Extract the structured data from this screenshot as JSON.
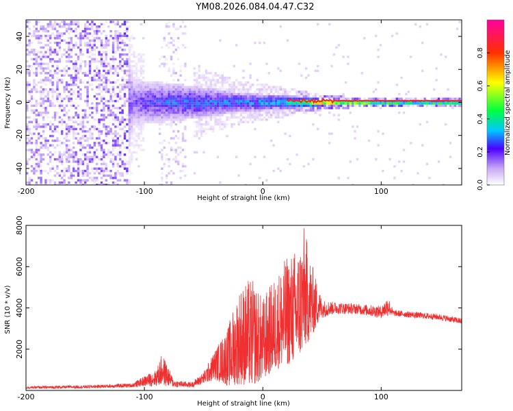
{
  "title": "YM08.2026.084.04.47.C32",
  "chart_data": [
    {
      "type": "heatmap",
      "name": "spectrogram",
      "xlabel": "Height of straight line (km)",
      "ylabel": "Frequency (Hz)",
      "xlim": [
        -200,
        168
      ],
      "ylim": [
        -50,
        50
      ],
      "xticks": [
        -200,
        -100,
        0,
        100
      ],
      "yticks": [
        -40,
        -20,
        0,
        20,
        40
      ],
      "colorbar": {
        "label": "Normalized spectral amplitude",
        "range": [
          0,
          1
        ],
        "ticks": [
          0.0,
          0.2,
          0.4,
          0.6,
          0.8
        ]
      },
      "description_points": [
        {
          "height": -200,
          "freq_spread": 50,
          "peak_amplitude": 0.15
        },
        {
          "height": -120,
          "freq_spread": 50,
          "peak_amplitude": 0.18
        },
        {
          "height": -110,
          "freq_spread": 14,
          "peak_amplitude": 0.25
        },
        {
          "height": -60,
          "freq_spread": 10,
          "peak_amplitude": 0.35
        },
        {
          "height": -20,
          "freq_spread": 6,
          "peak_amplitude": 0.35
        },
        {
          "height": 20,
          "freq_spread": 4,
          "peak_amplitude": 0.45
        },
        {
          "height": 50,
          "freq_spread": 2,
          "peak_amplitude": 0.9
        },
        {
          "height": 100,
          "freq_spread": 1,
          "peak_amplitude": 0.9
        },
        {
          "height": 168,
          "freq_spread": 1,
          "peak_amplitude": 0.9
        }
      ]
    },
    {
      "type": "line",
      "name": "snr",
      "xlabel": "Height of straight line (km)",
      "ylabel": "SNR (10 * v/v)",
      "xlim": [
        -200,
        168
      ],
      "ylim": [
        0,
        8000
      ],
      "xticks": [
        -200,
        -100,
        0,
        100
      ],
      "yticks": [
        2000,
        4000,
        6000,
        8000
      ],
      "color": "#f03030",
      "envelope": {
        "x": [
          -200,
          -150,
          -110,
          -100,
          -90,
          -85,
          -75,
          -60,
          -50,
          -40,
          -30,
          -20,
          -10,
          0,
          10,
          20,
          30,
          35,
          40,
          50,
          60,
          80,
          100,
          106,
          110,
          130,
          150,
          168
        ],
        "low": [
          80,
          100,
          150,
          200,
          200,
          200,
          150,
          150,
          300,
          500,
          200,
          300,
          200,
          500,
          1000,
          1200,
          1500,
          2000,
          2500,
          3500,
          3700,
          3700,
          3500,
          3600,
          3600,
          3500,
          3400,
          3200
        ],
        "high": [
          200,
          250,
          350,
          700,
          1000,
          1800,
          500,
          400,
          900,
          2000,
          3000,
          5000,
          5500,
          4500,
          5500,
          6500,
          7000,
          8000,
          6500,
          4400,
          4300,
          4200,
          4100,
          4600,
          3900,
          3800,
          3700,
          3500
        ]
      }
    }
  ]
}
